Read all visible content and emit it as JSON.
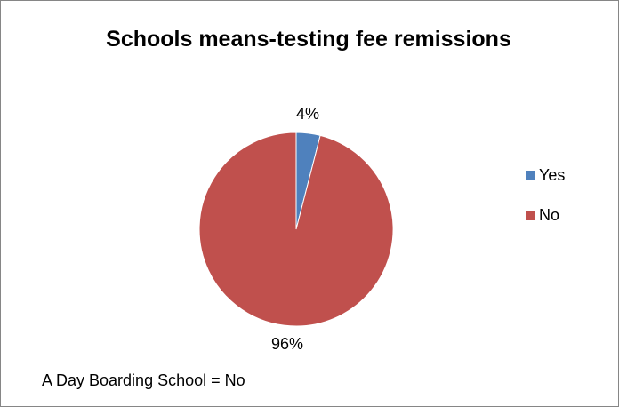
{
  "chart_data": {
    "type": "pie",
    "title": "Schools means-testing fee remissions",
    "categories": [
      "Yes",
      "No"
    ],
    "values": [
      4,
      96
    ],
    "value_labels": [
      "4%",
      "96%"
    ],
    "colors": [
      "#4F81BD",
      "#C0504D"
    ],
    "legend_position": "right",
    "legend": [
      "Yes",
      "No"
    ],
    "annotation": "A Day Boarding School = No"
  }
}
